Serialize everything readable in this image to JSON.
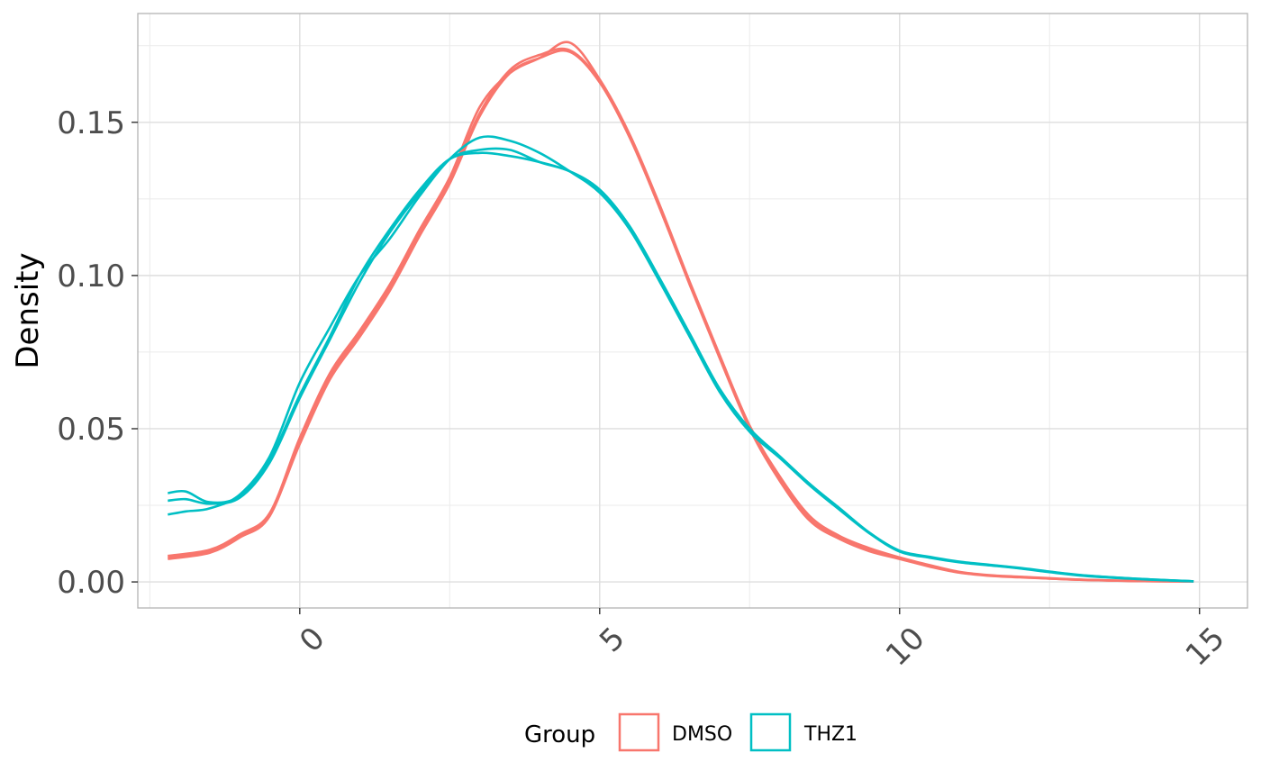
{
  "chart_data": {
    "type": "line",
    "title": "",
    "xlabel": "",
    "ylabel": "Density",
    "xlim": [
      -2.7,
      15.8
    ],
    "ylim": [
      -0.0085,
      0.1855
    ],
    "x_ticks": [
      0,
      5,
      10,
      15
    ],
    "x_tick_labels": [
      "0",
      "5",
      "10",
      "15"
    ],
    "y_ticks": [
      0.0,
      0.05,
      0.1,
      0.15
    ],
    "y_tick_labels": [
      "0.00",
      "0.05",
      "0.10",
      "0.15"
    ],
    "grid": true,
    "legend": {
      "title": "Group",
      "position": "bottom",
      "entries": [
        "DMSO",
        "THZ1"
      ]
    },
    "colors": {
      "DMSO": "#F8766D",
      "THZ1": "#00BFC4"
    },
    "series": [
      {
        "group": "DMSO",
        "x": [
          -2.2,
          -1.5,
          -1,
          -0.5,
          0,
          0.5,
          1,
          1.5,
          2,
          2.5,
          3,
          3.5,
          4,
          4.5,
          5,
          5.5,
          6,
          6.5,
          7,
          7.5,
          8,
          8.5,
          9,
          9.5,
          10,
          10.5,
          11,
          11.5,
          12,
          13,
          14,
          14.9
        ],
        "y": [
          0.008,
          0.01,
          0.015,
          0.022,
          0.045,
          0.066,
          0.08,
          0.095,
          0.113,
          0.13,
          0.152,
          0.166,
          0.171,
          0.173,
          0.163,
          0.145,
          0.122,
          0.097,
          0.073,
          0.05,
          0.033,
          0.02,
          0.014,
          0.01,
          0.0075,
          0.005,
          0.003,
          0.002,
          0.0015,
          0.0007,
          0.0003,
          0.0001
        ]
      },
      {
        "group": "DMSO",
        "x": [
          -2.2,
          -1.5,
          -1,
          -0.5,
          0,
          0.5,
          1,
          1.5,
          2,
          2.5,
          3,
          3.5,
          4,
          4.5,
          5,
          5.5,
          6,
          6.5,
          7,
          7.5,
          8,
          8.5,
          9,
          9.5,
          10,
          10.5,
          11,
          11.5,
          12,
          13,
          14,
          14.9
        ],
        "y": [
          0.0075,
          0.0095,
          0.0145,
          0.0215,
          0.046,
          0.067,
          0.081,
          0.096,
          0.114,
          0.131,
          0.153,
          0.167,
          0.172,
          0.1735,
          0.1635,
          0.1455,
          0.122,
          0.0975,
          0.0735,
          0.0505,
          0.0335,
          0.0205,
          0.0145,
          0.0105,
          0.0078,
          0.0052,
          0.0031,
          0.0021,
          0.0016,
          0.0007,
          0.0003,
          0.0001
        ]
      },
      {
        "group": "DMSO",
        "x": [
          -2.2,
          -1.5,
          -1,
          -0.5,
          0,
          0.5,
          1,
          1.5,
          2,
          2.5,
          3,
          3.5,
          4,
          4.5,
          5,
          5.5,
          6,
          6.5,
          7,
          7.5,
          8,
          8.5,
          9,
          9.5,
          10,
          10.5,
          11,
          11.5,
          12,
          13,
          14,
          14.9
        ],
        "y": [
          0.0085,
          0.0105,
          0.0155,
          0.0225,
          0.047,
          0.068,
          0.082,
          0.097,
          0.115,
          0.132,
          0.155,
          0.166,
          0.171,
          0.176,
          0.164,
          0.146,
          0.123,
          0.098,
          0.074,
          0.051,
          0.0345,
          0.0215,
          0.015,
          0.011,
          0.008,
          0.0055,
          0.0033,
          0.0022,
          0.0017,
          0.0008,
          0.0003,
          0.0001
        ]
      },
      {
        "group": "THZ1",
        "x": [
          -2.2,
          -1.9,
          -1.5,
          -1,
          -0.5,
          0,
          0.5,
          1,
          1.5,
          2,
          2.5,
          3,
          3.5,
          4,
          4.5,
          5,
          5.5,
          6,
          6.5,
          7,
          7.5,
          8,
          8.5,
          9,
          9.5,
          10,
          10.5,
          11,
          11.5,
          12,
          13,
          14,
          14.9
        ],
        "y": [
          0.029,
          0.0295,
          0.026,
          0.028,
          0.04,
          0.061,
          0.08,
          0.1,
          0.115,
          0.128,
          0.138,
          0.14,
          0.139,
          0.137,
          0.134,
          0.128,
          0.116,
          0.099,
          0.081,
          0.063,
          0.05,
          0.041,
          0.032,
          0.024,
          0.016,
          0.01,
          0.008,
          0.0065,
          0.0055,
          0.0045,
          0.0022,
          0.001,
          0.0002
        ]
      },
      {
        "group": "THZ1",
        "x": [
          -2.2,
          -1.9,
          -1.5,
          -1,
          -0.5,
          0,
          0.5,
          1,
          1.5,
          2,
          2.5,
          3,
          3.5,
          4,
          4.5,
          5,
          5.5,
          6,
          6.5,
          7,
          7.5,
          8,
          8.5,
          9,
          9.5,
          10,
          10.5,
          11,
          11.5,
          12,
          13,
          14,
          14.9
        ],
        "y": [
          0.0265,
          0.027,
          0.0255,
          0.0275,
          0.039,
          0.06,
          0.079,
          0.098,
          0.114,
          0.127,
          0.138,
          0.141,
          0.141,
          0.137,
          0.134,
          0.128,
          0.116,
          0.099,
          0.081,
          0.063,
          0.05,
          0.041,
          0.032,
          0.024,
          0.016,
          0.0102,
          0.0082,
          0.0066,
          0.0056,
          0.0046,
          0.0023,
          0.001,
          0.0002
        ]
      },
      {
        "group": "THZ1",
        "x": [
          -2.2,
          -1.9,
          -1.5,
          -1,
          -0.5,
          0,
          0.5,
          1,
          1.5,
          2,
          2.5,
          3,
          3.5,
          4,
          4.5,
          5,
          5.5,
          6,
          6.5,
          7,
          7.5,
          8,
          8.5,
          9,
          9.5,
          10,
          10.5,
          11,
          11.5,
          12,
          13,
          14,
          14.9
        ],
        "y": [
          0.022,
          0.023,
          0.024,
          0.0285,
          0.041,
          0.065,
          0.083,
          0.1,
          0.112,
          0.126,
          0.138,
          0.145,
          0.144,
          0.14,
          0.134,
          0.127,
          0.115,
          0.098,
          0.08,
          0.062,
          0.049,
          0.0405,
          0.0315,
          0.0235,
          0.0158,
          0.0099,
          0.0079,
          0.0064,
          0.0054,
          0.0044,
          0.0021,
          0.0009,
          0.0002
        ]
      }
    ]
  }
}
